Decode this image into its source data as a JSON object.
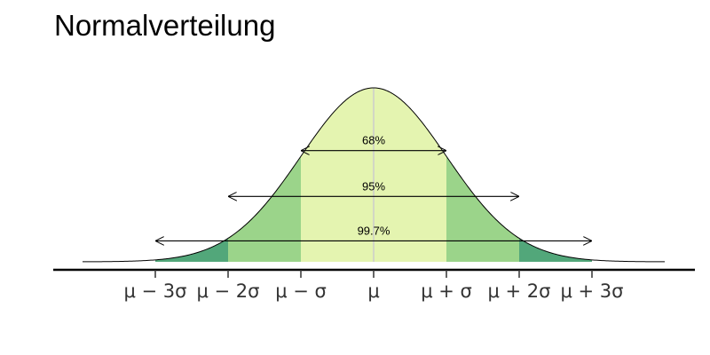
{
  "chart_data": {
    "type": "area",
    "title": "Normalverteilung",
    "xlabel": "",
    "ylabel": "",
    "xlim": [
      -4,
      4
    ],
    "grid": false,
    "legend": "none",
    "curve": "normal-density",
    "ticks": [
      {
        "x": -3,
        "label": "μ − 3σ"
      },
      {
        "x": -2,
        "label": "μ − 2σ"
      },
      {
        "x": -1,
        "label": "μ − σ"
      },
      {
        "x": 0,
        "label": "μ"
      },
      {
        "x": 1,
        "label": "μ + σ"
      },
      {
        "x": 2,
        "label": "μ + 2σ"
      },
      {
        "x": 3,
        "label": "μ + 3σ"
      }
    ],
    "bands": [
      {
        "from": -3,
        "to": 3,
        "color": "#52a77a"
      },
      {
        "from": -2,
        "to": 2,
        "color": "#9bd48a"
      },
      {
        "from": -1,
        "to": 1,
        "color": "#e4f4b0"
      }
    ],
    "intervals": [
      {
        "from": -1,
        "to": 1,
        "label": "68%",
        "y": 0.255
      },
      {
        "from": -2,
        "to": 2,
        "label": "95%",
        "y": 0.15
      },
      {
        "from": -3,
        "to": 3,
        "label": "99.7%",
        "y": 0.048
      }
    ],
    "mean_line_color": "#cccccc"
  }
}
